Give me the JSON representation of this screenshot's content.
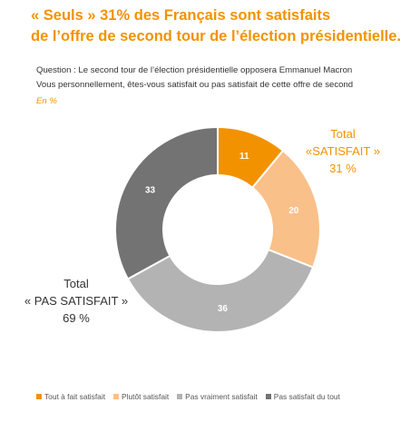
{
  "title": {
    "line1": "« Seuls » 31% des Français sont satisfaits",
    "line2": "de l’offre de second tour de l’élection présidentielle."
  },
  "question": {
    "line1": "Question : Le second tour de l’élection présidentielle opposera Emmanuel Macron",
    "line2": "Vous personnellement, êtes-vous satisfait ou pas satisfait de cette offre de second"
  },
  "unit": "En %",
  "totals": {
    "satisfait": {
      "line1": "Total",
      "line2": "«SATISFAIT »",
      "value": "31 %"
    },
    "pas_satisfait": {
      "line1": "Total",
      "line2": "« PAS SATISFAIT »",
      "value": "69 %"
    }
  },
  "colors": {
    "accent": "#f39200",
    "tout_a_fait": "#f39200",
    "plutot": "#f9c08a",
    "pas_vraiment": "#b3b3b3",
    "pas_du_tout": "#737373"
  },
  "chart_data": {
    "type": "pie",
    "style": "donut",
    "categories": [
      "Tout à fait satisfait",
      "Plutôt satisfait",
      "Pas vraiment satisfait",
      "Pas satisfait du tout"
    ],
    "values": [
      11,
      20,
      36,
      33
    ],
    "data_labels": [
      "11",
      "20",
      "36",
      "33"
    ],
    "colors": [
      "#f39200",
      "#f9c08a",
      "#b3b3b3",
      "#737373"
    ],
    "legend_position": "bottom"
  }
}
